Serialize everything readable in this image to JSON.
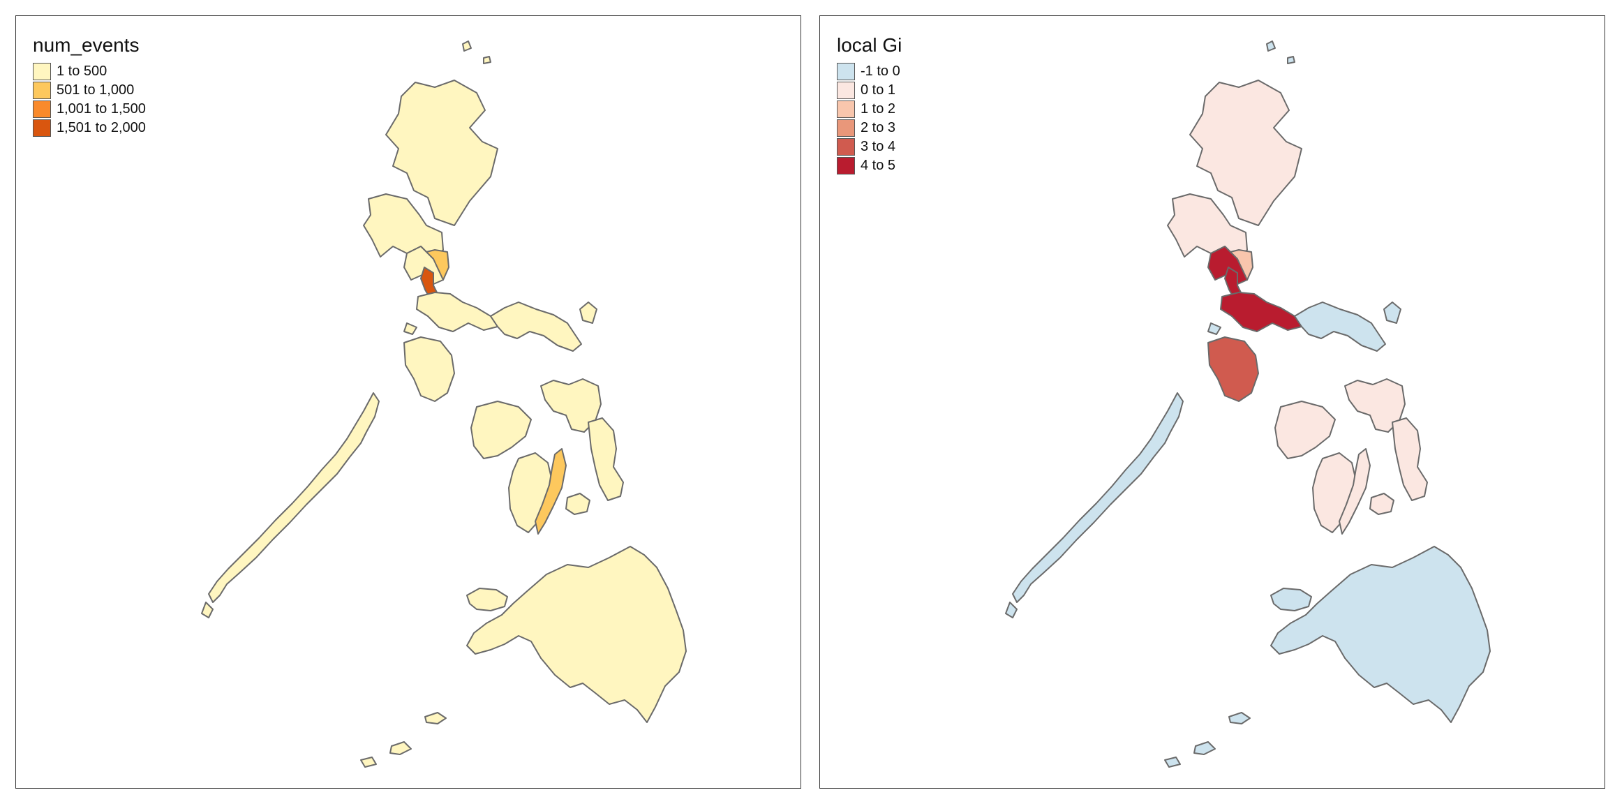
{
  "maps": [
    {
      "id": "left",
      "legend": {
        "title": "num_events",
        "items": [
          {
            "label": "1 to 500",
            "color": "#fff6c0"
          },
          {
            "label": "501 to 1,000",
            "color": "#fdc85d"
          },
          {
            "label": "1,001 to 1,500",
            "color": "#f98a2b"
          },
          {
            "label": "1,501 to 2,000",
            "color": "#d9560f"
          }
        ]
      },
      "region_classes": {
        "default": 0,
        "north_central": 0,
        "manila_core": 0,
        "calabarzon": 0,
        "bicol": 0,
        "mindoro": 0,
        "palawan": 0,
        "visayas": 0,
        "cebu": 1,
        "panay_negros": 0,
        "bohol": 0,
        "samar_leyte": 0,
        "mindanao": 0,
        "central_luzon_core": 1,
        "metro_manila": 3
      }
    },
    {
      "id": "right",
      "legend": {
        "title": "local Gi",
        "items": [
          {
            "label": "-1 to 0",
            "color": "#cde3ee"
          },
          {
            "label": "0 to 1",
            "color": "#fbe7e1"
          },
          {
            "label": "1 to 2",
            "color": "#f8c6ad"
          },
          {
            "label": "2 to 3",
            "color": "#e9977a"
          },
          {
            "label": "3 to 4",
            "color": "#d05b4f"
          },
          {
            "label": "4 to 5",
            "color": "#b91c2f"
          }
        ]
      },
      "region_classes": {
        "default": 0,
        "north_central": 1,
        "manila_core": 5,
        "calabarzon": 5,
        "bicol": 0,
        "mindoro": 4,
        "palawan": 0,
        "visayas": 1,
        "cebu": 1,
        "panay_negros": 1,
        "bohol": 1,
        "samar_leyte": 1,
        "mindanao": 0,
        "central_luzon_core": 2,
        "metro_manila": 5
      }
    }
  ]
}
